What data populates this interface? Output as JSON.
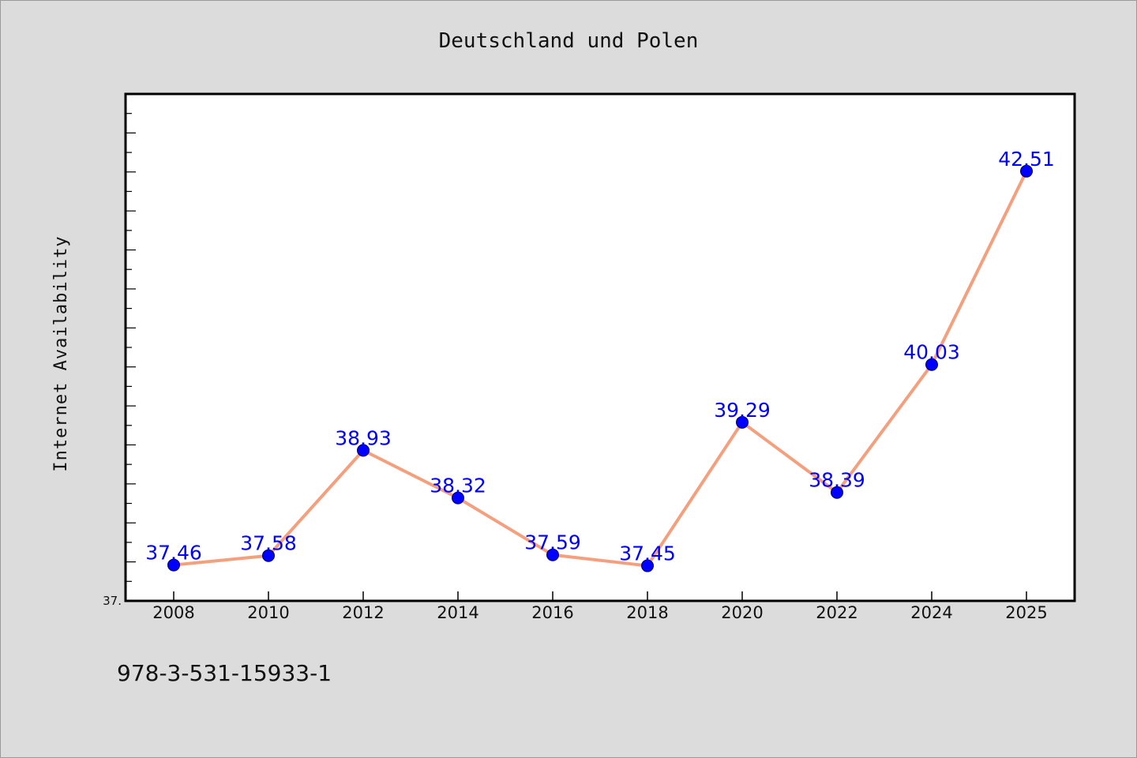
{
  "isbn": "978-3-531-15933-1",
  "colors": {
    "line": "#f4a07e",
    "marker": "#0000ff",
    "label": "#0000ff",
    "background": "#dcdcdc",
    "plot_bg": "#ffffff"
  },
  "chart_data": {
    "type": "line",
    "title": "Deutschland und Polen",
    "xlabel": "",
    "ylabel": "Internet Availability",
    "categories": [
      "2008",
      "2010",
      "2012",
      "2014",
      "2016",
      "2018",
      "2020",
      "2022",
      "2024",
      "2025"
    ],
    "series": [
      {
        "values": [
          37.46,
          37.58,
          38.93,
          38.32,
          37.59,
          37.45,
          39.29,
          38.39,
          40.03,
          42.51
        ]
      }
    ],
    "data_labels": [
      "37.46",
      "37.58",
      "38.93",
      "38.32",
      "37.59",
      "37.45",
      "39.29",
      "38.39",
      "40.03",
      "42.51"
    ],
    "ylim": [
      37.0,
      43.5
    ],
    "ytick_labels": [
      "37."
    ],
    "grid": false,
    "legend": "none"
  }
}
